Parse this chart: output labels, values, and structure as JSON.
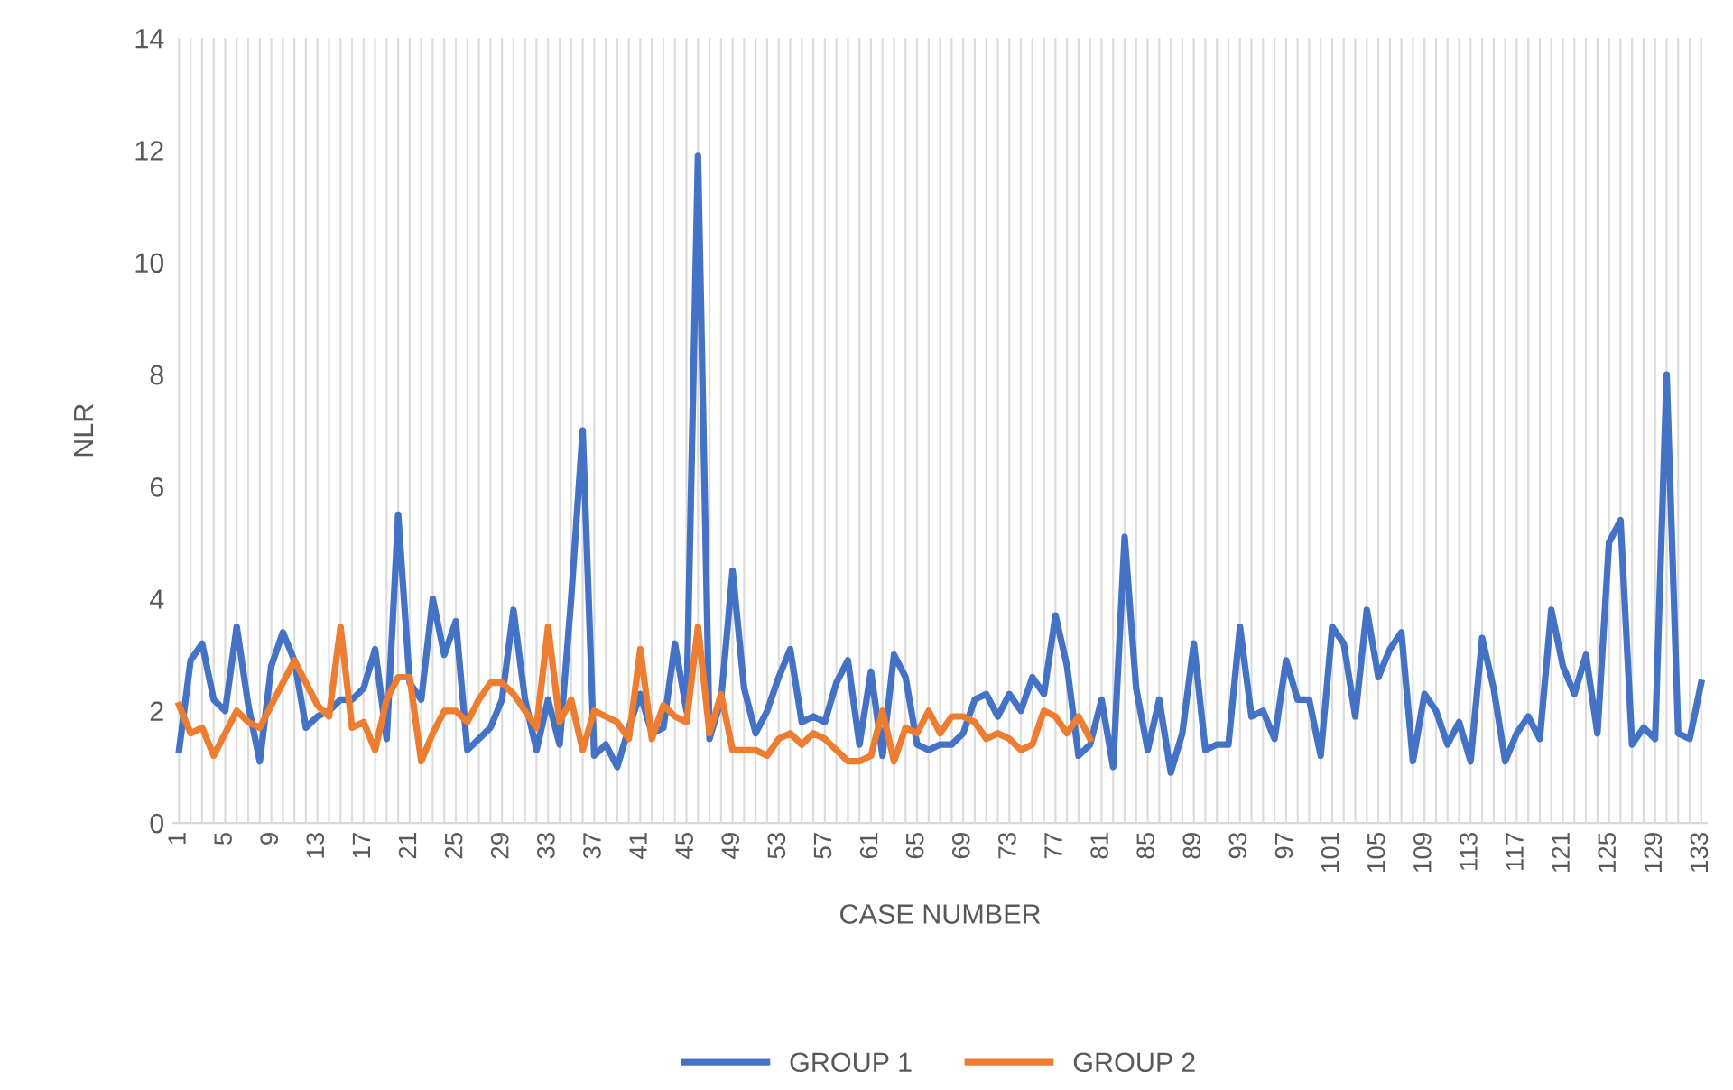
{
  "chart_data": {
    "type": "line",
    "xlabel": "CASE NUMBER",
    "ylabel": "NLR",
    "categories": [
      "1",
      null,
      null,
      null,
      "5",
      null,
      null,
      null,
      "9",
      null,
      null,
      null,
      "13",
      null,
      null,
      null,
      "17",
      null,
      null,
      null,
      "21",
      null,
      null,
      null,
      "25",
      null,
      null,
      null,
      "29",
      null,
      null,
      null,
      "33",
      null,
      null,
      null,
      "37",
      null,
      null,
      null,
      "41",
      null,
      null,
      null,
      "45",
      null,
      null,
      null,
      "49",
      null,
      null,
      null,
      "53",
      null,
      null,
      null,
      "57",
      null,
      null,
      null,
      "61",
      null,
      null,
      null,
      "65",
      null,
      null,
      null,
      "69",
      null,
      null,
      null,
      "73",
      null,
      null,
      null,
      "77",
      null,
      null,
      null,
      "81",
      null,
      null,
      null,
      "85",
      null,
      null,
      null,
      "89",
      null,
      null,
      null,
      "93",
      null,
      null,
      null,
      "97",
      null,
      null,
      null,
      "101",
      null,
      null,
      null,
      "105",
      null,
      null,
      null,
      "109",
      null,
      null,
      null,
      "113",
      null,
      null,
      null,
      "117",
      null,
      null,
      null,
      "121",
      null,
      null,
      null,
      "125",
      null,
      null,
      null,
      "129",
      null,
      null,
      null,
      "133"
    ],
    "series": [
      {
        "name": "GROUP 1",
        "color": "#4472c4",
        "values": [
          1.3,
          2.9,
          3.2,
          2.2,
          2.0,
          3.5,
          2.1,
          1.1,
          2.8,
          3.4,
          2.9,
          1.7,
          1.9,
          2.0,
          2.2,
          2.2,
          2.4,
          3.1,
          1.5,
          5.5,
          2.5,
          2.2,
          4.0,
          3.0,
          3.6,
          1.3,
          1.5,
          1.7,
          2.2,
          3.8,
          2.2,
          1.3,
          2.2,
          1.4,
          4.0,
          7.0,
          1.2,
          1.4,
          1.0,
          1.7,
          2.3,
          1.6,
          1.7,
          3.2,
          2.0,
          11.9,
          1.5,
          2.2,
          4.5,
          2.4,
          1.6,
          2.0,
          2.6,
          3.1,
          1.8,
          1.9,
          1.8,
          2.5,
          2.9,
          1.4,
          2.7,
          1.2,
          3.0,
          2.6,
          1.4,
          1.3,
          1.4,
          1.4,
          1.6,
          2.2,
          2.3,
          1.9,
          2.3,
          2.0,
          2.6,
          2.3,
          3.7,
          2.8,
          1.2,
          1.4,
          2.2,
          1.0,
          5.1,
          2.4,
          1.3,
          2.2,
          0.9,
          1.6,
          3.2,
          1.3,
          1.4,
          1.4,
          3.5,
          1.9,
          2.0,
          1.5,
          2.9,
          2.2,
          2.2,
          1.2,
          3.5,
          3.2,
          1.9,
          3.8,
          2.6,
          3.1,
          3.4,
          1.1,
          2.3,
          2.0,
          1.4,
          1.8,
          1.1,
          3.3,
          2.4,
          1.1,
          1.6,
          1.9,
          1.5,
          3.8,
          2.8,
          2.3,
          3.0,
          1.6,
          5.0,
          5.4,
          1.4,
          1.7,
          1.5,
          8.0,
          1.6,
          1.5,
          2.5
        ]
      },
      {
        "name": "GROUP 2",
        "color": "#ed7d31",
        "values": [
          2.1,
          1.6,
          1.7,
          1.2,
          1.6,
          2.0,
          1.8,
          1.7,
          2.1,
          2.5,
          2.9,
          2.5,
          2.1,
          1.9,
          3.5,
          1.7,
          1.8,
          1.3,
          2.2,
          2.6,
          2.6,
          1.1,
          1.6,
          2.0,
          2.0,
          1.8,
          2.2,
          2.5,
          2.5,
          2.3,
          2.0,
          1.7,
          3.5,
          1.8,
          2.2,
          1.3,
          2.0,
          1.9,
          1.8,
          1.5,
          3.1,
          1.5,
          2.1,
          1.9,
          1.8,
          3.5,
          1.6,
          2.3,
          1.3,
          1.3,
          1.3,
          1.2,
          1.5,
          1.6,
          1.4,
          1.6,
          1.5,
          1.3,
          1.1,
          1.1,
          1.2,
          2.0,
          1.1,
          1.7,
          1.6,
          2.0,
          1.6,
          1.9,
          1.9,
          1.8,
          1.5,
          1.6,
          1.5,
          1.3,
          1.4,
          2.0,
          1.9,
          1.6,
          1.9,
          1.5,
          null,
          null,
          null,
          null,
          null,
          null,
          null,
          null,
          null,
          null,
          null,
          null,
          null,
          null,
          null,
          null,
          null,
          null,
          null,
          null,
          null,
          null,
          null,
          null,
          null,
          null,
          null,
          null,
          null,
          null,
          null,
          null,
          null,
          null,
          null,
          null,
          null,
          null,
          null,
          null,
          null,
          null,
          null,
          null,
          null,
          null,
          null,
          null,
          null,
          null,
          null,
          null,
          null
        ]
      }
    ],
    "ylim": [
      0,
      14
    ],
    "yticks": [
      0,
      2,
      4,
      6,
      8,
      10,
      12,
      14
    ],
    "grid": "x",
    "legend": "bottom",
    "line_style": "solid",
    "marker": "none"
  }
}
